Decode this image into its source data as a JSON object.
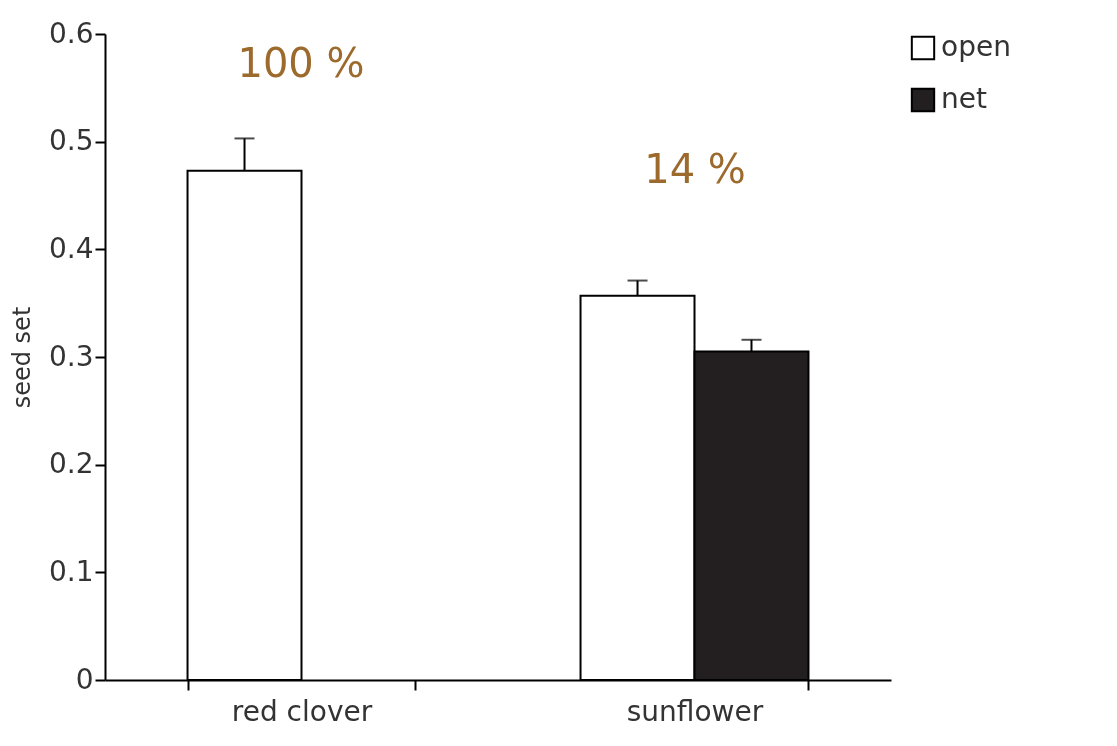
{
  "chart_data": {
    "type": "bar",
    "ylabel": "seed set",
    "categories": [
      "red clover",
      "sunflower"
    ],
    "series": [
      {
        "name": "open",
        "color": "#ffffff",
        "values": [
          0.473,
          0.357
        ],
        "errors": [
          [
            0.473,
            0.503
          ],
          [
            0.357,
            0.371
          ]
        ]
      },
      {
        "name": "net",
        "color": "#231f20",
        "values": [
          null,
          0.305
        ],
        "errors": [
          null,
          [
            0.305,
            0.316
          ]
        ]
      }
    ],
    "ylim": [
      0,
      0.6
    ],
    "yticks": [
      0,
      0.1,
      0.2,
      0.3,
      0.4,
      0.5,
      0.6
    ],
    "annotations": [
      "100 %",
      "14 %"
    ],
    "grid": false,
    "legend": "right"
  }
}
